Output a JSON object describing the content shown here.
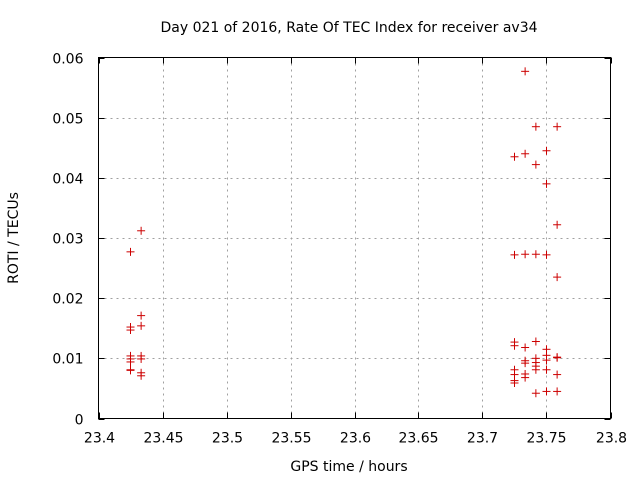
{
  "chart_data": {
    "type": "scatter",
    "title": "Day 021 of 2016, Rate Of TEC Index for receiver av34",
    "xlabel": "GPS time / hours",
    "ylabel": "ROTI / TECUs",
    "xlim": [
      23.4,
      23.8
    ],
    "ylim": [
      0,
      0.06
    ],
    "x_ticks": [
      23.4,
      23.45,
      23.5,
      23.55,
      23.6,
      23.65,
      23.7,
      23.75,
      23.8
    ],
    "x_tick_labels": [
      "23.4",
      "23.45",
      "23.5",
      "23.55",
      "23.6",
      "23.65",
      "23.7",
      "23.75",
      "23.8"
    ],
    "y_ticks": [
      0,
      0.01,
      0.02,
      0.03,
      0.04,
      0.05,
      0.06
    ],
    "y_tick_labels": [
      "0",
      "0.01",
      "0.02",
      "0.03",
      "0.04",
      "0.05",
      "0.06"
    ],
    "grid": true,
    "marker": "+",
    "marker_color": "#cc0000",
    "series": [
      {
        "name": "ROTI",
        "points": [
          [
            23.425,
            0.0277
          ],
          [
            23.425,
            0.0152
          ],
          [
            23.425,
            0.0147
          ],
          [
            23.425,
            0.0104
          ],
          [
            23.425,
            0.0099
          ],
          [
            23.425,
            0.0094
          ],
          [
            23.425,
            0.0081
          ],
          [
            23.425,
            0.008
          ],
          [
            23.4333,
            0.0312
          ],
          [
            23.4333,
            0.0171
          ],
          [
            23.4333,
            0.0154
          ],
          [
            23.4333,
            0.0104
          ],
          [
            23.4333,
            0.0099
          ],
          [
            23.4333,
            0.0076
          ],
          [
            23.4333,
            0.0071
          ],
          [
            23.725,
            0.0435
          ],
          [
            23.725,
            0.0272
          ],
          [
            23.725,
            0.0127
          ],
          [
            23.725,
            0.0121
          ],
          [
            23.725,
            0.0081
          ],
          [
            23.725,
            0.0073
          ],
          [
            23.725,
            0.0063
          ],
          [
            23.725,
            0.0059
          ],
          [
            23.7333,
            0.0577
          ],
          [
            23.7333,
            0.044
          ],
          [
            23.7333,
            0.0273
          ],
          [
            23.7333,
            0.0118
          ],
          [
            23.7333,
            0.0096
          ],
          [
            23.7333,
            0.0092
          ],
          [
            23.7333,
            0.0074
          ],
          [
            23.7333,
            0.0068
          ],
          [
            23.7417,
            0.0485
          ],
          [
            23.7417,
            0.0422
          ],
          [
            23.7417,
            0.0273
          ],
          [
            23.7417,
            0.0128
          ],
          [
            23.7417,
            0.01
          ],
          [
            23.7417,
            0.0093
          ],
          [
            23.7417,
            0.0087
          ],
          [
            23.7417,
            0.0081
          ],
          [
            23.7417,
            0.0042
          ],
          [
            23.75,
            0.0445
          ],
          [
            23.75,
            0.039
          ],
          [
            23.75,
            0.0272
          ],
          [
            23.75,
            0.0115
          ],
          [
            23.75,
            0.0105
          ],
          [
            23.75,
            0.0097
          ],
          [
            23.75,
            0.0081
          ],
          [
            23.75,
            0.0045
          ],
          [
            23.7583,
            0.0485
          ],
          [
            23.7583,
            0.0322
          ],
          [
            23.7583,
            0.0235
          ],
          [
            23.7583,
            0.0102
          ],
          [
            23.7583,
            0.0101
          ],
          [
            23.7583,
            0.0073
          ],
          [
            23.7583,
            0.0045
          ]
        ]
      }
    ]
  }
}
